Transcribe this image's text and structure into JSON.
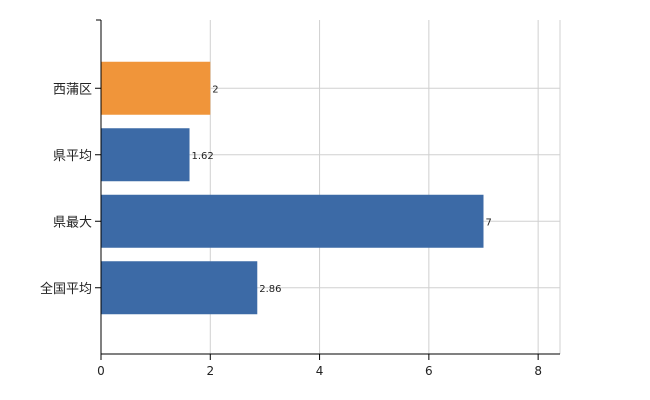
{
  "chart_data": {
    "type": "bar",
    "orientation": "horizontal",
    "categories": [
      "西蒲区",
      "県平均",
      "県最大",
      "全国平均"
    ],
    "values": [
      2,
      1.62,
      7,
      2.86
    ],
    "value_labels": [
      "2",
      "1.62",
      "7",
      "2.86"
    ],
    "xlim": [
      0,
      8.4
    ],
    "xticks": [
      0,
      2,
      4,
      6,
      8
    ],
    "xtick_labels": [
      "0",
      "2",
      "4",
      "6",
      "8"
    ],
    "grid": true,
    "title": "",
    "xlabel": "",
    "ylabel": "",
    "colors": {
      "highlight": "#f0953a",
      "default": "#3c6aa6",
      "grid": "#d0d0d0",
      "axis": "#000000"
    },
    "highlight_index": 0
  }
}
